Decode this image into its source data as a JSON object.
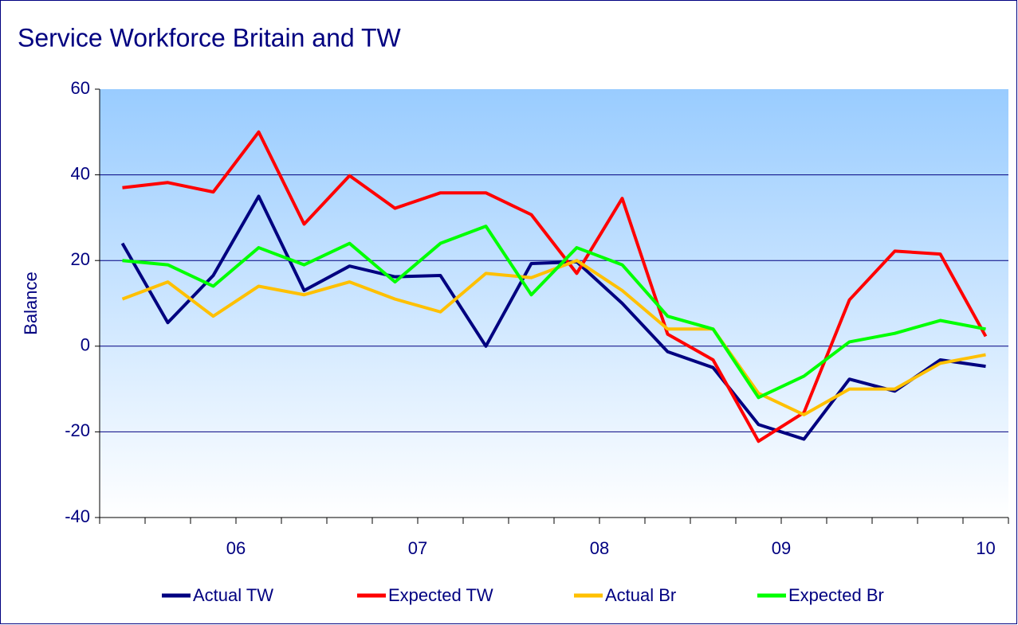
{
  "chart_data": {
    "type": "line",
    "title": "Service Workforce Britain and TW",
    "ylabel": "Balance",
    "categories": [
      null,
      null,
      null,
      "06",
      null,
      null,
      null,
      "07",
      null,
      null,
      null,
      "08",
      null,
      null,
      null,
      "09",
      null,
      null,
      null,
      "10"
    ],
    "series": [
      {
        "name": "Actual TW",
        "color": "#000080",
        "values": [
          24,
          5.5,
          16.5,
          35,
          13,
          18.7,
          16.2,
          16.5,
          0,
          19.3,
          19.7,
          10,
          -1.3,
          -5,
          -18.3,
          -21.7,
          -7.7,
          -10.5,
          -3.2,
          -4.7
        ]
      },
      {
        "name": "Expected TW",
        "color": "#ff0000",
        "values": [
          37,
          38.2,
          36,
          50,
          28.5,
          39.8,
          32.2,
          35.8,
          35.8,
          30.7,
          17,
          34.5,
          2.8,
          -3.2,
          -22.2,
          -15.5,
          10.8,
          22.2,
          21.5,
          2.3
        ]
      },
      {
        "name": "Actual Br",
        "color": "#ffc000",
        "values": [
          11,
          15,
          7,
          14,
          12,
          15,
          11,
          8,
          17,
          16,
          20,
          13,
          4,
          4,
          -11,
          -16,
          -10,
          -10,
          -4,
          -2
        ]
      },
      {
        "name": "Expected Br",
        "color": "#00ff00",
        "values": [
          20,
          19,
          14,
          23,
          19,
          24,
          15,
          24,
          28,
          12,
          23,
          19,
          7,
          4,
          -12,
          -7,
          1,
          3,
          6,
          4
        ]
      }
    ],
    "ylim": [
      -40,
      60
    ],
    "yticks": [
      -40,
      -20,
      0,
      20,
      40,
      60
    ],
    "grid": true,
    "legend": "bottom"
  }
}
